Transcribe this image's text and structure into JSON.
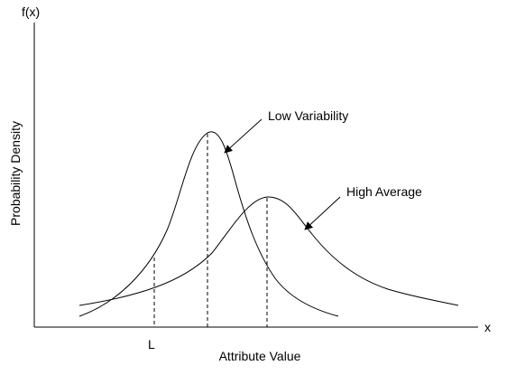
{
  "diagram": {
    "y_axis_symbol": "f(x)",
    "x_axis_symbol": "x",
    "y_axis_title": "Probability Density",
    "x_axis_title": "Attribute Value",
    "tick_L": "L",
    "callout_low_variability": "Low Variability",
    "callout_high_average": "High Average",
    "line_color": "#000000",
    "background": "#ffffff"
  }
}
